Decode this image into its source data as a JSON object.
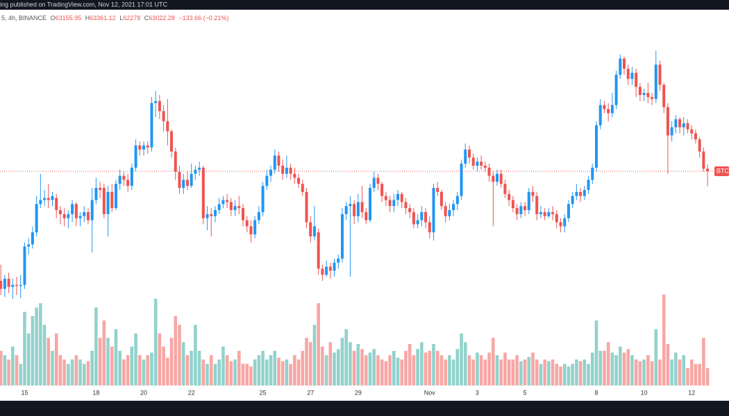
{
  "header": {
    "banner": "ing published on TradingView.com, Nov 12, 2021 17:01 UTC"
  },
  "legend": {
    "symbol": "5, 4h, BINANCE",
    "open_label": "O",
    "high_label": "H",
    "low_label": "L",
    "close_label": "C",
    "change": "−133.66 (−0.21%)"
  },
  "price_label": "BTC",
  "chart_data": {
    "type": "candlestick",
    "up_color": "#2196f3",
    "down_color": "#ef5350",
    "volume_up_color": "#92d2cc",
    "volume_down_color": "#f7a7a5",
    "ylim": [
      56400,
      70300
    ],
    "xlim": [
      -0.2,
      183.4
    ],
    "xticks": [
      {
        "value": 6,
        "label": "15"
      },
      {
        "value": 24,
        "label": "18"
      },
      {
        "value": 36,
        "label": "20"
      },
      {
        "value": 48,
        "label": "22"
      },
      {
        "value": 66,
        "label": "25"
      },
      {
        "value": 78,
        "label": "27"
      },
      {
        "value": 90,
        "label": "29"
      },
      {
        "value": 108,
        "label": "Nov"
      },
      {
        "value": 120,
        "label": "3"
      },
      {
        "value": 132,
        "label": "5"
      },
      {
        "value": 150,
        "label": "8"
      },
      {
        "value": 162,
        "label": "10"
      },
      {
        "value": 174,
        "label": "12"
      }
    ],
    "open": [
      57600,
      57200,
      57700,
      57300,
      57400,
      57350,
      57400,
      59300,
      59400,
      60000,
      61400,
      61600,
      61700,
      61600,
      61700,
      61100,
      60900,
      60700,
      60900,
      61400,
      60700,
      60800,
      61000,
      60600,
      61600,
      62200,
      62200,
      60900,
      62000,
      61200,
      62400,
      62800,
      62600,
      62300,
      63200,
      64300,
      64100,
      64300,
      64200,
      66400,
      66500,
      66000,
      65500,
      65000,
      64000,
      63000,
      62200,
      62600,
      62300,
      62900,
      63100,
      63200,
      60700,
      60900,
      60800,
      61100,
      61400,
      61600,
      61500,
      61100,
      61300,
      61200,
      60600,
      60300,
      59900,
      60600,
      61000,
      62300,
      62800,
      63100,
      63800,
      63300,
      62900,
      63200,
      62900,
      62700,
      62400,
      62000,
      60500,
      59800,
      60000,
      58200,
      57900,
      58300,
      58100,
      58500,
      58700,
      60900,
      61300,
      61400,
      60800,
      61500,
      61000,
      60600,
      62200,
      62700,
      62400,
      61800,
      61600,
      61300,
      61600,
      61900,
      61500,
      61200,
      61000,
      60400,
      60600,
      61000,
      60500,
      60000,
      62200,
      62000,
      61300,
      60800,
      61100,
      61400,
      61800,
      63400,
      64100,
      63700,
      63300,
      63500,
      63300,
      63200,
      62800,
      62500,
      62900,
      62400,
      61900,
      61600,
      61200,
      60900,
      61300,
      61100,
      62000,
      61800,
      60900,
      61000,
      60800,
      61000,
      60900,
      60500,
      60300,
      60700,
      61400,
      61800,
      62000,
      61800,
      62100,
      62600,
      63200,
      65300,
      66300,
      66100,
      65900,
      66300,
      67800,
      68600,
      68100,
      67600,
      67900,
      67200,
      66800,
      66900,
      66700,
      66600,
      68300,
      67300,
      66200,
      64800,
      65200,
      65600,
      65200,
      65400,
      65100,
      64900,
      64600,
      64000,
      63155.95
    ],
    "high": [
      58400,
      57900,
      58000,
      57700,
      57800,
      57900,
      59500,
      59700,
      60300,
      61800,
      62900,
      62100,
      62400,
      62000,
      61900,
      61300,
      61200,
      61100,
      61600,
      61500,
      61000,
      61300,
      61200,
      62200,
      62700,
      62500,
      62400,
      62300,
      62400,
      62600,
      63100,
      63000,
      62900,
      63400,
      64600,
      64500,
      64500,
      64500,
      66700,
      67000,
      66800,
      66300,
      66600,
      65100,
      64200,
      63300,
      62900,
      63000,
      63400,
      63300,
      63500,
      63300,
      61300,
      61200,
      61300,
      61700,
      61800,
      61900,
      61700,
      61600,
      61800,
      61400,
      60800,
      60600,
      60800,
      61300,
      62500,
      63100,
      63300,
      64100,
      64000,
      63600,
      63800,
      63400,
      63200,
      62900,
      62600,
      62200,
      60800,
      61300,
      60200,
      58400,
      58600,
      58500,
      58700,
      58900,
      61200,
      61500,
      61800,
      61600,
      61900,
      62300,
      61200,
      62400,
      63000,
      62900,
      62500,
      62000,
      61800,
      61900,
      62100,
      62000,
      61700,
      61400,
      61200,
      60900,
      61300,
      61200,
      60800,
      62400,
      62500,
      62100,
      61500,
      61400,
      61600,
      62000,
      63600,
      64400,
      64300,
      63900,
      63700,
      63800,
      63500,
      63400,
      63000,
      63100,
      63100,
      62600,
      62100,
      61800,
      61400,
      61500,
      61500,
      62200,
      62300,
      62000,
      61300,
      61200,
      61200,
      61300,
      61100,
      60700,
      60900,
      61600,
      62000,
      62400,
      62200,
      62300,
      62800,
      63400,
      65500,
      66600,
      66500,
      66400,
      66900,
      68000,
      68800,
      68700,
      68300,
      68200,
      68100,
      67400,
      67100,
      67400,
      66900,
      69000,
      68500,
      67400,
      66400,
      65500,
      65800,
      65700,
      65700,
      65600,
      65300,
      65100,
      64700,
      64200,
      63361.12
    ],
    "low": [
      56900,
      56800,
      57000,
      56700,
      56900,
      56750,
      57200,
      58900,
      59200,
      59800,
      61200,
      61300,
      61200,
      61300,
      60700,
      60400,
      60300,
      60200,
      60500,
      60300,
      60300,
      60500,
      60400,
      59000,
      61400,
      61700,
      60700,
      59800,
      61000,
      61100,
      62100,
      62300,
      62000,
      62100,
      63000,
      63800,
      63800,
      63900,
      64000,
      65700,
      65600,
      65000,
      64300,
      63700,
      62600,
      61900,
      61900,
      62100,
      62200,
      62600,
      62800,
      60400,
      60100,
      59800,
      60500,
      60900,
      61200,
      61200,
      60800,
      60800,
      60900,
      60300,
      60000,
      59500,
      59700,
      60400,
      60800,
      62100,
      62500,
      62900,
      63000,
      62600,
      62700,
      62600,
      62400,
      62200,
      61800,
      60200,
      59500,
      59600,
      57900,
      57600,
      57800,
      57700,
      57800,
      58200,
      58500,
      60600,
      57800,
      60400,
      60500,
      60700,
      60400,
      60500,
      62000,
      62100,
      61500,
      61300,
      61000,
      61000,
      61300,
      61200,
      60900,
      60700,
      60200,
      60200,
      60300,
      60200,
      59700,
      59600,
      61800,
      61100,
      60500,
      60600,
      60800,
      61100,
      61600,
      63200,
      63400,
      63100,
      63000,
      63100,
      63000,
      62500,
      60300,
      62300,
      62200,
      61700,
      61300,
      61000,
      60600,
      60700,
      60800,
      60900,
      61500,
      60600,
      60700,
      60600,
      60700,
      60600,
      60200,
      60000,
      60000,
      60500,
      61200,
      61600,
      61500,
      61600,
      61900,
      62400,
      63000,
      65100,
      65900,
      65500,
      65700,
      66100,
      67600,
      67800,
      67300,
      67300,
      66700,
      66500,
      66500,
      66400,
      66300,
      66400,
      67000,
      65900,
      62900,
      64500,
      64900,
      64900,
      64800,
      64900,
      64600,
      64400,
      63700,
      63000,
      62278
    ],
    "close": [
      57200,
      57700,
      57300,
      57400,
      57350,
      57400,
      59300,
      59400,
      60000,
      61400,
      61600,
      61700,
      61600,
      61800,
      61100,
      60900,
      60700,
      60900,
      61400,
      60700,
      60800,
      61000,
      60600,
      61600,
      62200,
      62100,
      60900,
      62000,
      61200,
      62400,
      62800,
      62600,
      62300,
      63200,
      64300,
      64100,
      64300,
      64200,
      66400,
      66500,
      66000,
      65500,
      65000,
      64000,
      63000,
      62200,
      62600,
      62300,
      62900,
      63100,
      63200,
      60700,
      60900,
      60800,
      61100,
      61400,
      61600,
      61500,
      61100,
      61300,
      61200,
      60600,
      60300,
      59900,
      60600,
      61000,
      62300,
      62800,
      63100,
      63800,
      63300,
      62900,
      63200,
      62900,
      62700,
      62400,
      62000,
      60500,
      59800,
      60300,
      58200,
      57900,
      58300,
      58100,
      58500,
      58700,
      60900,
      61300,
      61400,
      60800,
      61500,
      61000,
      60600,
      62200,
      62700,
      62400,
      61800,
      61600,
      61300,
      61600,
      61900,
      61500,
      61200,
      61000,
      60400,
      60600,
      61000,
      60500,
      60000,
      62200,
      62000,
      61300,
      60800,
      61100,
      61400,
      61800,
      63400,
      64100,
      63700,
      63300,
      63500,
      63300,
      63200,
      62800,
      62500,
      62900,
      62400,
      61900,
      61600,
      61200,
      60900,
      61300,
      61100,
      62000,
      61800,
      60900,
      61000,
      60800,
      61000,
      60900,
      60500,
      60300,
      60700,
      61400,
      61800,
      62000,
      61800,
      62100,
      62600,
      63200,
      65300,
      66300,
      66100,
      65900,
      66300,
      67800,
      68600,
      68100,
      67600,
      67900,
      67200,
      66800,
      66900,
      66700,
      66600,
      68300,
      67300,
      66200,
      64800,
      65200,
      65600,
      65200,
      65400,
      65100,
      64900,
      64600,
      64000,
      63150,
      63022.28
    ],
    "volume": [
      400,
      350,
      300,
      450,
      350,
      250,
      850,
      600,
      800,
      900,
      950,
      700,
      550,
      400,
      600,
      350,
      300,
      250,
      300,
      350,
      300,
      250,
      280,
      400,
      900,
      550,
      750,
      550,
      450,
      650,
      400,
      300,
      350,
      450,
      600,
      350,
      300,
      350,
      380,
      1000,
      600,
      450,
      320,
      550,
      800,
      700,
      500,
      350,
      400,
      700,
      400,
      300,
      250,
      350,
      250,
      300,
      450,
      350,
      280,
      300,
      400,
      250,
      250,
      220,
      300,
      350,
      400,
      300,
      350,
      400,
      320,
      280,
      300,
      250,
      350,
      300,
      400,
      550,
      500,
      700,
      950,
      450,
      350,
      500,
      380,
      420,
      550,
      650,
      500,
      400,
      480,
      420,
      350,
      380,
      420,
      350,
      300,
      280,
      350,
      400,
      320,
      300,
      400,
      480,
      350,
      420,
      500,
      380,
      400,
      480,
      400,
      350,
      300,
      350,
      300,
      420,
      600,
      500,
      350,
      300,
      380,
      350,
      300,
      380,
      550,
      350,
      300,
      380,
      300,
      300,
      350,
      280,
      300,
      330,
      380,
      300,
      250,
      300,
      280,
      300,
      250,
      220,
      250,
      220,
      250,
      300,
      280,
      300,
      250,
      380,
      750,
      400,
      400,
      500,
      380,
      350,
      450,
      380,
      420,
      350,
      300,
      280,
      300,
      350,
      280,
      650,
      300,
      1050,
      480,
      300,
      380,
      300,
      350,
      200,
      300,
      250,
      250,
      550,
      200
    ]
  }
}
